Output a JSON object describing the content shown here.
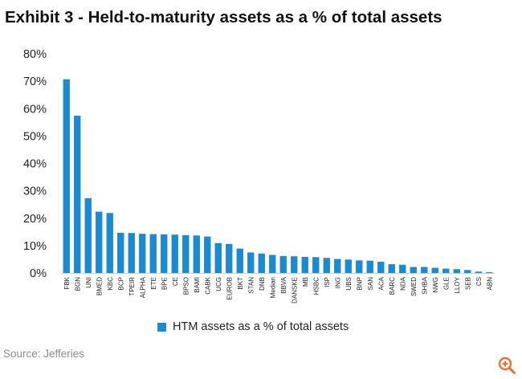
{
  "title": "Exhibit 3 - Held-to-maturity assets as a % of total assets",
  "source": "Source: Jefferies",
  "legend_label": "HTM assets as a % of total assets",
  "colors": {
    "bar": "#1b8ad0",
    "axis": "#d0d0d0",
    "tick_text": "#222222",
    "zoom": "#e0713a"
  },
  "icons": {
    "zoom": "zoom-in-icon"
  },
  "chart_data": {
    "type": "bar",
    "title": "Exhibit 3 - Held-to-maturity assets as a % of total assets",
    "xlabel": "",
    "ylabel": "",
    "ylim": [
      0,
      80
    ],
    "yticks": [
      0,
      10,
      20,
      30,
      40,
      50,
      60,
      70,
      80
    ],
    "ytick_labels": [
      "0%",
      "10%",
      "20%",
      "30%",
      "40%",
      "50%",
      "60%",
      "70%",
      "80%"
    ],
    "grid": false,
    "legend_position": "bottom",
    "categories": [
      "FBK",
      "BGN",
      "UNI",
      "BMED",
      "KBC",
      "BCP",
      "TPEIR",
      "ALPHA",
      "ETE",
      "BPE",
      "CE",
      "BPSO",
      "BAMI",
      "CABK",
      "UCG",
      "EUROB",
      "BKT",
      "STAN",
      "DNB",
      "Median",
      "BBVA",
      "DANSKE",
      "MB",
      "HSBC",
      "ISP",
      "ING",
      "UBS",
      "BNP",
      "SAN",
      "ACA",
      "BARC",
      "NDA",
      "SWED",
      "SHBA",
      "NWG",
      "GLE",
      "LLOY",
      "SEB",
      "CS",
      "ABN"
    ],
    "series": [
      {
        "name": "HTM assets as a % of total assets",
        "values": [
          70.7,
          57.4,
          27.3,
          22.4,
          21.9,
          14.7,
          14.6,
          14.3,
          14.2,
          14.1,
          14.0,
          13.8,
          13.7,
          13.3,
          10.9,
          10.6,
          8.9,
          7.5,
          7.1,
          6.6,
          6.2,
          6.1,
          5.9,
          5.8,
          5.5,
          5.1,
          4.9,
          4.6,
          4.5,
          4.1,
          3.2,
          3.0,
          2.2,
          2.2,
          1.9,
          1.6,
          1.4,
          1.1,
          0.5,
          0.3
        ]
      }
    ]
  }
}
